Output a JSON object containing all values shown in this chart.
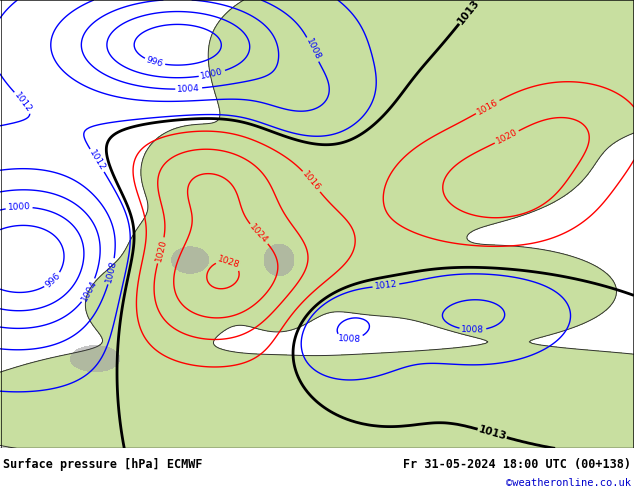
{
  "title_left": "Surface pressure [hPa] ECMWF",
  "title_right": "Fr 31-05-2024 18:00 UTC (00+138)",
  "copyright": "©weatheronline.co.uk",
  "footer_bg": "#ffffff",
  "footer_text_color": "#000000",
  "copyright_color": "#0000cc",
  "contour_blue": "#0000ff",
  "contour_red": "#ff0000",
  "contour_black": "#000000",
  "land_color": "#c8dfa0",
  "ocean_color": "#b0cce0",
  "mountain_color": "#a0a0a0",
  "label_fontsize": 6.5,
  "footer_fontsize": 8.5,
  "figsize": [
    6.34,
    4.9
  ],
  "dpi": 100
}
